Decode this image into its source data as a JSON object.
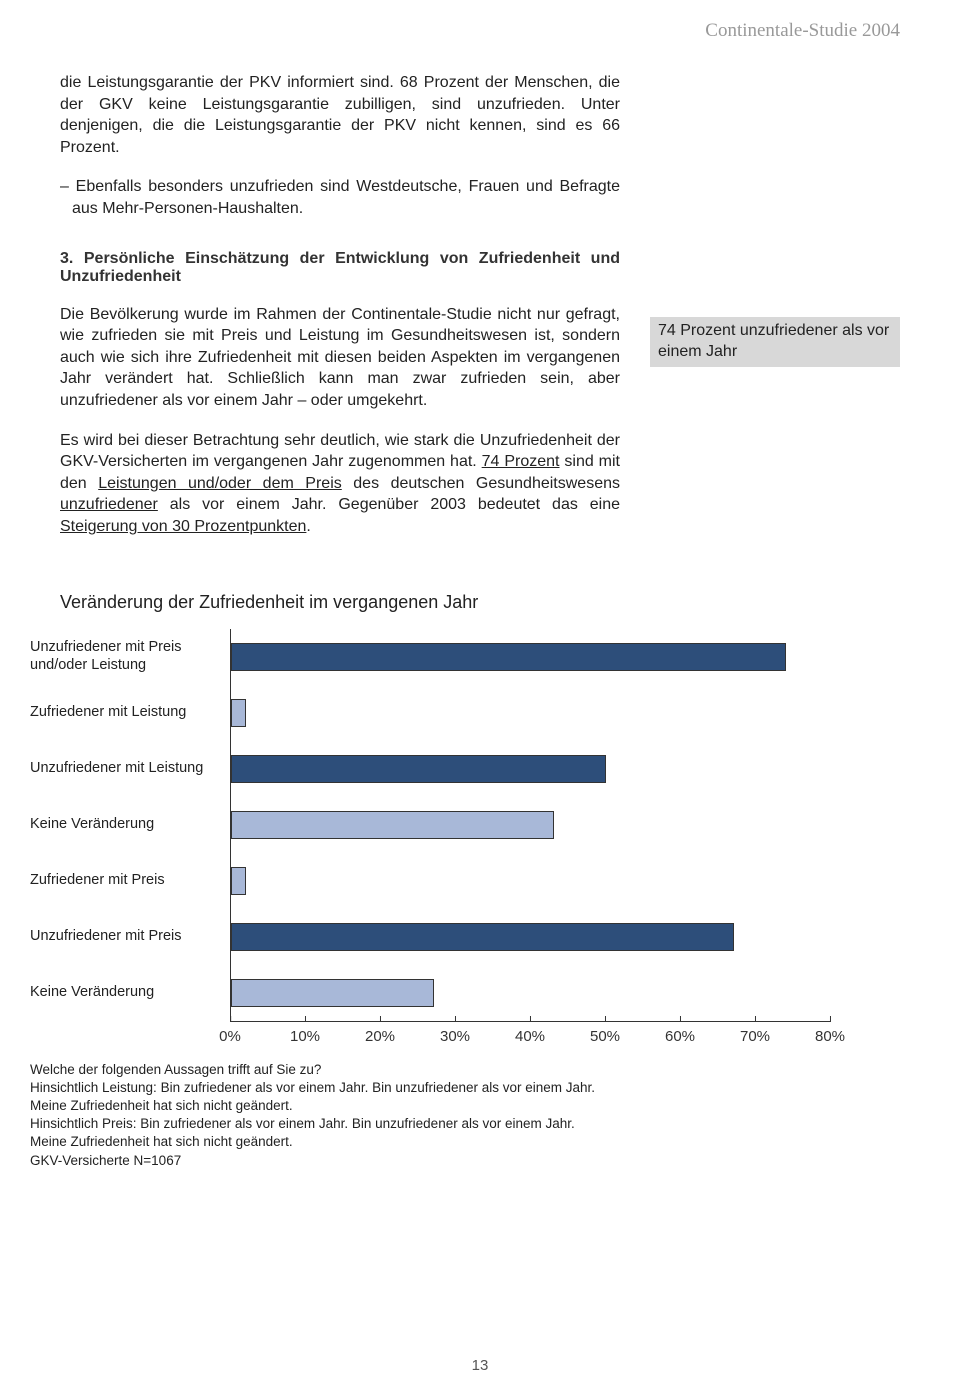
{
  "header": {
    "title": "Continentale-Studie 2004"
  },
  "para1": "die Leistungsgarantie der PKV informiert sind. 68 Prozent der Menschen, die der GKV keine Leistungsgarantie zubilligen, sind unzufrieden. Unter denjenigen, die die Leistungsgarantie der PKV nicht kennen, sind es 66 Prozent.",
  "para2": "– Ebenfalls besonders unzufrieden sind Westdeutsche, Frauen und Befragte aus Mehr-Personen-Haushalten.",
  "section_heading": "3. Persönliche Einschätzung der Entwicklung von Zufriedenheit und Unzufriedenheit",
  "para3": "Die Bevölkerung wurde im Rahmen der Continentale-Studie nicht nur gefragt, wie zufrieden sie mit Preis und Leistung im Gesundheitswesen ist, sondern auch wie sich ihre Zufriedenheit mit diesen beiden Aspekten im vergangenen Jahr verändert hat. Schließlich kann man zwar zufrieden sein, aber unzufriedener als vor einem Jahr – oder umgekehrt.",
  "para4_a": "Es wird bei dieser Betrachtung sehr deutlich, wie stark die Unzufriedenheit der GKV-Versicherten im vergangenen Jahr zugenommen hat. ",
  "para4_u1": "74 Prozent",
  "para4_b": " sind mit den ",
  "para4_u2": "Leistungen und/oder dem Preis",
  "para4_c": " des deutschen Gesundheitswesens ",
  "para4_u3": "unzufriedener",
  "para4_d": " als vor einem Jahr. Gegenüber 2003 bedeutet das eine ",
  "para4_u4": "Steigerung von 30 Prozentpunkten",
  "para4_e": ".",
  "callout": "74 Prozent unzufriedener als vor einem Jahr",
  "chart": {
    "title": "Veränderung der Zufriedenheit im vergangenen Jahr",
    "xmax": 80,
    "xtick_step": 10,
    "colors": {
      "dark": "#2d4e7a",
      "light": "#a8b8d8",
      "border": "#333333"
    },
    "bars": [
      {
        "label": "Unzufriedener mit Preis und/oder Leistung",
        "value": 74,
        "color": "dark"
      },
      {
        "label": "Zufriedener mit Leistung",
        "value": 2,
        "color": "light"
      },
      {
        "label": "Unzufriedener mit Leistung",
        "value": 50,
        "color": "dark"
      },
      {
        "label": "Keine Veränderung",
        "value": 43,
        "color": "light"
      },
      {
        "label": "Zufriedener mit Preis",
        "value": 2,
        "color": "light"
      },
      {
        "label": "Unzufriedener mit Preis",
        "value": 67,
        "color": "dark"
      },
      {
        "label": "Keine Veränderung",
        "value": 27,
        "color": "light"
      }
    ],
    "ticks": [
      "0%",
      "10%",
      "20%",
      "30%",
      "40%",
      "50%",
      "60%",
      "70%",
      "80%"
    ]
  },
  "footnotes": [
    "Welche der folgenden Aussagen trifft auf Sie zu?",
    "Hinsichtlich Leistung: Bin zufriedener als vor einem Jahr. Bin unzufriedener als vor einem Jahr.",
    "Meine Zufriedenheit hat sich nicht geändert.",
    "Hinsichtlich Preis: Bin zufriedener als vor einem Jahr. Bin unzufriedener als vor einem Jahr.",
    "Meine Zufriedenheit hat sich nicht geändert.",
    "GKV-Versicherte N=1067"
  ],
  "page_number": "13"
}
